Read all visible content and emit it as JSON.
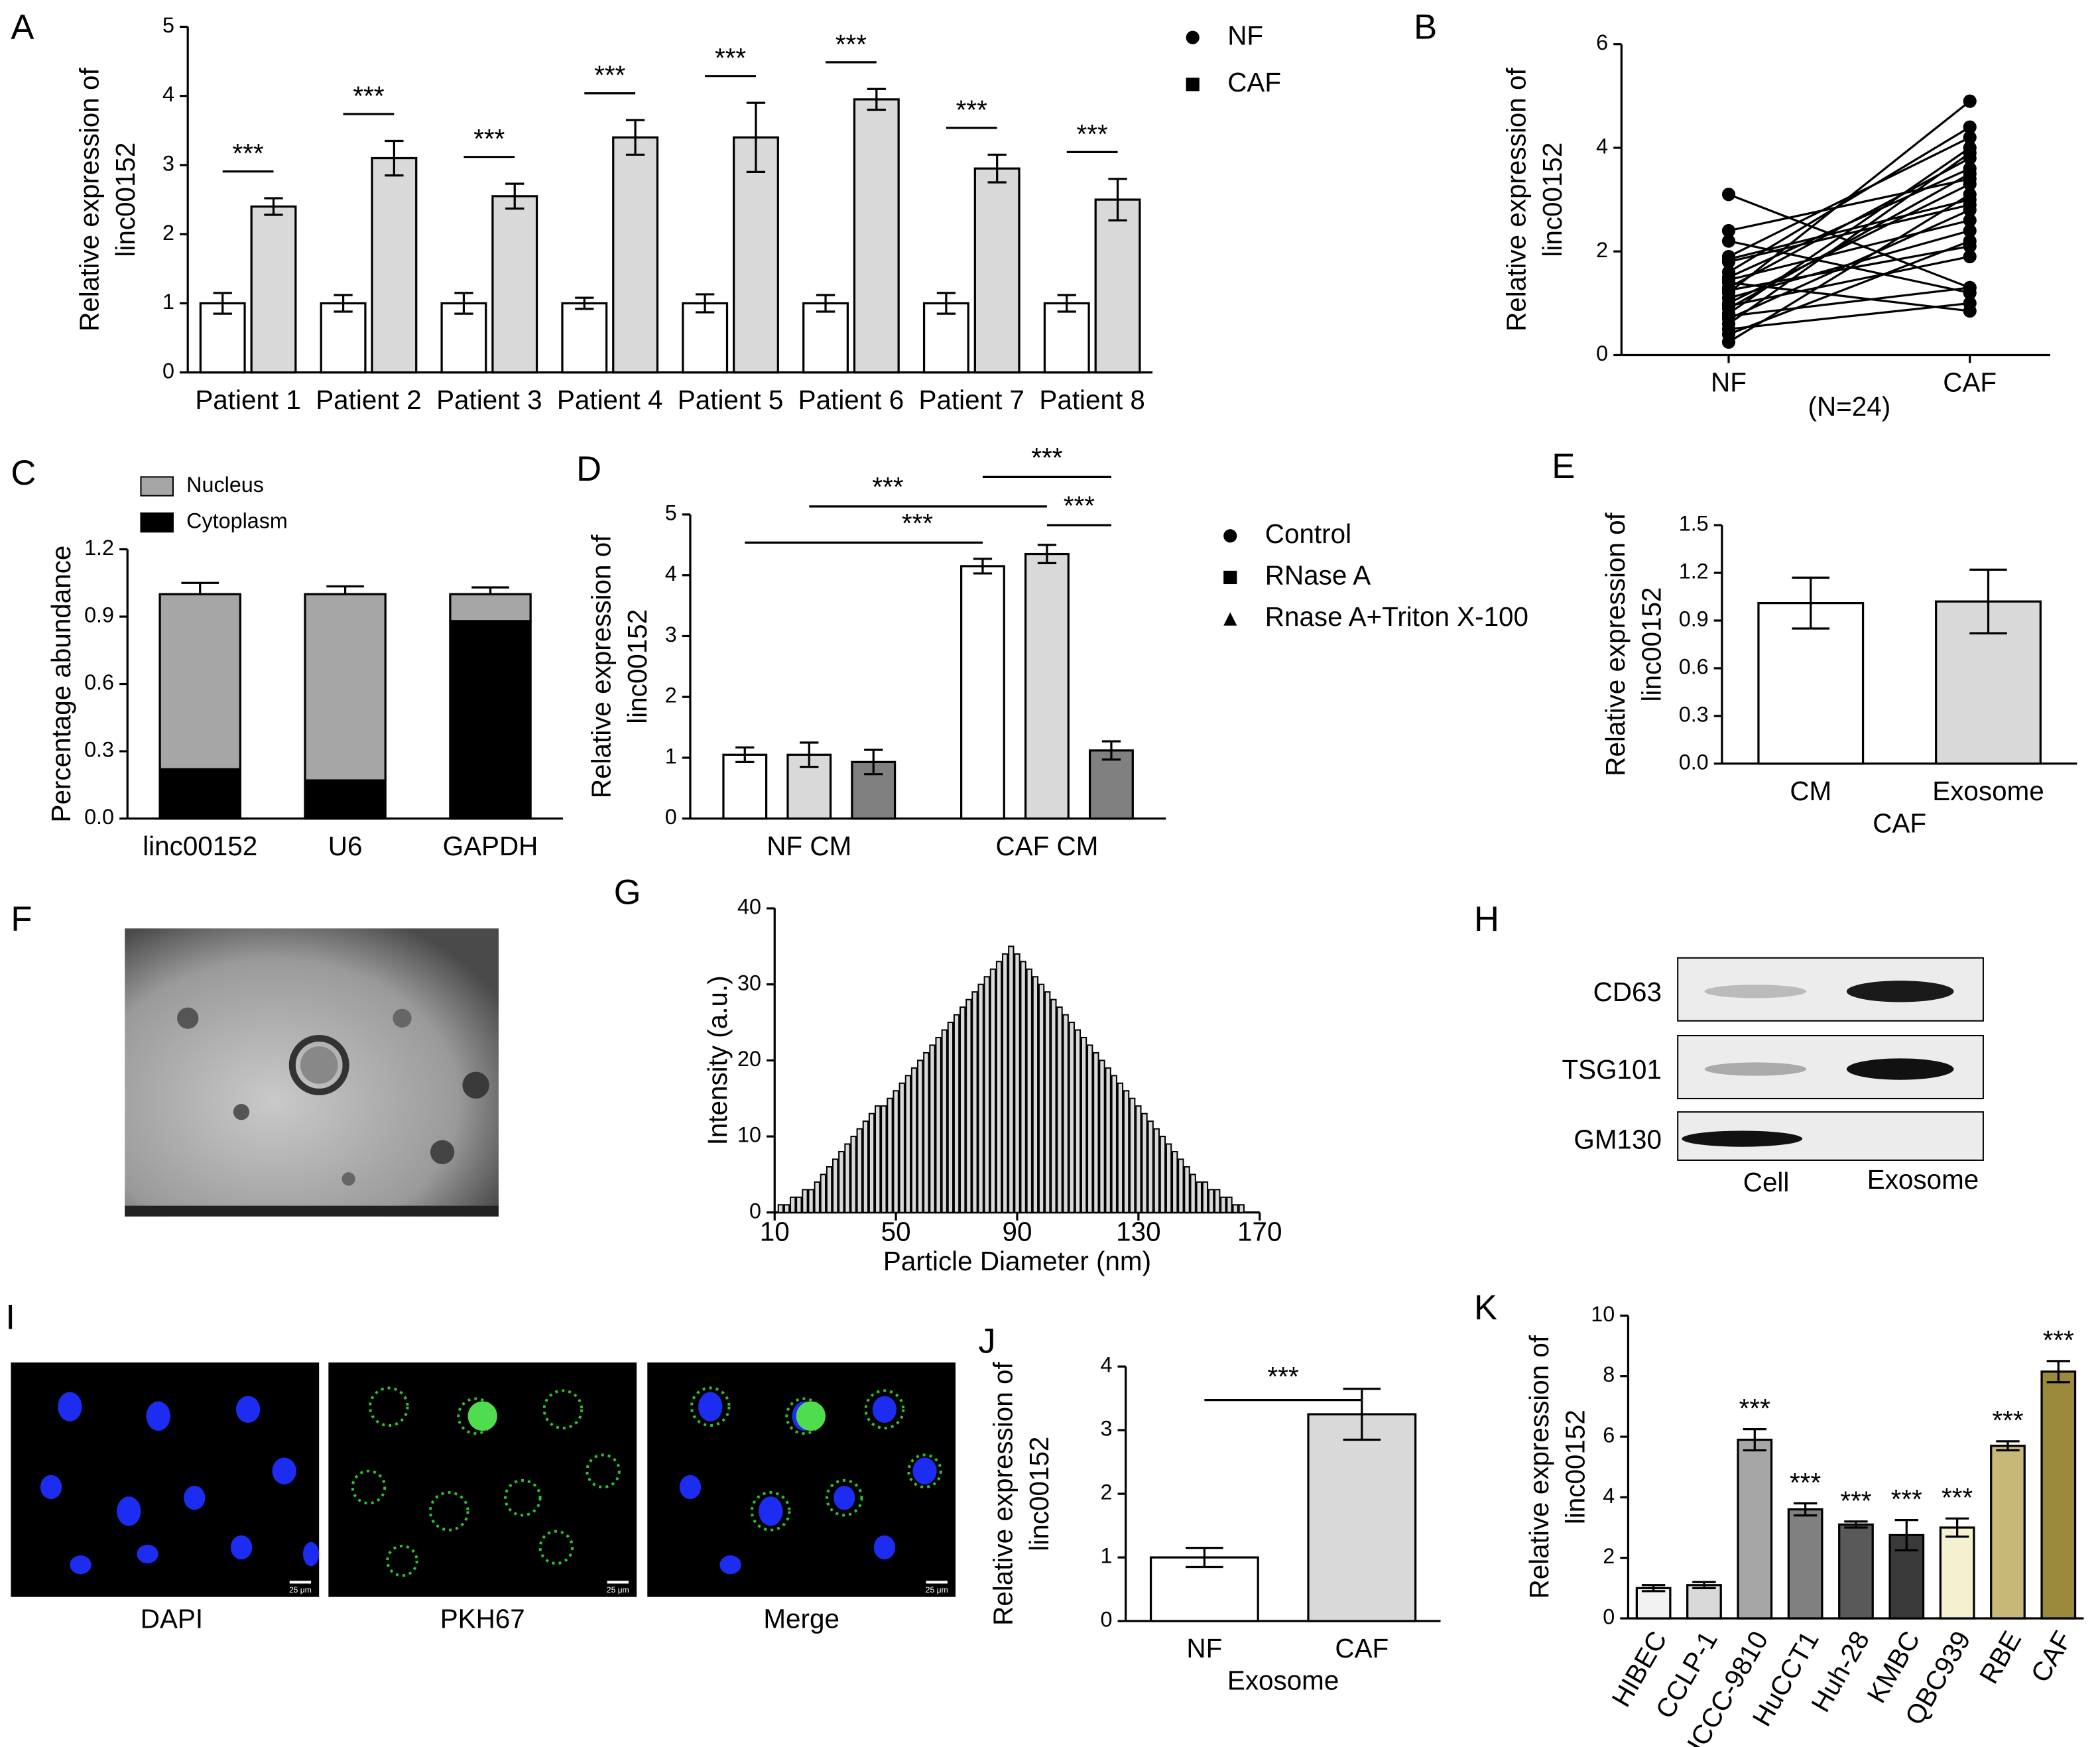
{
  "chart_data": [
    {
      "panel": "A",
      "type": "bar",
      "ylabel": [
        "Relative expression of",
        "linc00152"
      ],
      "categories": [
        "Patient 1",
        "Patient 2",
        "Patient 3",
        "Patient 4",
        "Patient 5",
        "Patient 6",
        "Patient 7",
        "Patient 8"
      ],
      "series": [
        {
          "name": "NF",
          "color": "#ffffff",
          "marker": "circle",
          "values": [
            1,
            1,
            1,
            1,
            1,
            1,
            1,
            1
          ],
          "errors": [
            0.15,
            0.12,
            0.15,
            0.08,
            0.13,
            0.12,
            0.15,
            0.12
          ]
        },
        {
          "name": "CAF",
          "color": "#d9d9d9",
          "marker": "square",
          "values": [
            2.4,
            3.1,
            2.55,
            3.4,
            3.4,
            3.95,
            2.95,
            2.5
          ],
          "errors": [
            0.12,
            0.25,
            0.18,
            0.25,
            0.5,
            0.15,
            0.2,
            0.3
          ]
        }
      ],
      "annotations": [
        "***",
        "***",
        "***",
        "***",
        "***",
        "***",
        "***",
        "***"
      ],
      "ylim": [
        0,
        5
      ],
      "yticks": [
        0,
        1,
        2,
        3,
        4,
        5
      ],
      "legend": "right"
    },
    {
      "panel": "B",
      "type": "paired",
      "ylabel": [
        "Relative expression of",
        "linc00152"
      ],
      "categories": [
        "NF",
        "CAF"
      ],
      "note": "(N=24)",
      "pairs": [
        [
          3.1,
          1.3
        ],
        [
          2.4,
          3.4
        ],
        [
          2.2,
          1.2
        ],
        [
          1.9,
          4.2
        ],
        [
          1.85,
          3.0
        ],
        [
          1.8,
          2.9
        ],
        [
          1.6,
          4.4
        ],
        [
          1.5,
          3.6
        ],
        [
          1.45,
          2.6
        ],
        [
          1.4,
          0.85
        ],
        [
          1.3,
          3.8
        ],
        [
          1.25,
          2.1
        ],
        [
          1.2,
          4.9
        ],
        [
          1.1,
          2.4
        ],
        [
          1.0,
          3.3
        ],
        [
          0.95,
          1.9
        ],
        [
          0.9,
          3.5
        ],
        [
          0.8,
          4.0
        ],
        [
          0.75,
          1.3
        ],
        [
          0.7,
          2.8
        ],
        [
          0.6,
          3.9
        ],
        [
          0.5,
          1.0
        ],
        [
          0.4,
          2.2
        ],
        [
          0.25,
          3.1
        ]
      ],
      "color": "#000000",
      "ylim": [
        0,
        6
      ],
      "yticks": [
        0,
        2,
        4,
        6
      ]
    },
    {
      "panel": "C",
      "type": "stacked_bar",
      "ylabel": [
        "Percentage abundance"
      ],
      "categories": [
        "linc00152",
        "U6",
        "GAPDH"
      ],
      "series": [
        {
          "name": "Nucleus",
          "color": "#a6a6a6",
          "values": [
            0.78,
            0.83,
            0.12
          ],
          "errors": [
            0.05,
            0.035,
            0.03
          ]
        },
        {
          "name": "Cytoplasm",
          "color": "#000000",
          "values": [
            0.22,
            0.17,
            0.88
          ],
          "errors": [
            0.05,
            0.035,
            0.03
          ]
        }
      ],
      "ylim": [
        0,
        1.2
      ],
      "yticks": [
        {
          "value": 0,
          "label": "0.0"
        },
        0.3,
        0.6,
        0.9,
        1.2
      ],
      "legend": "top"
    },
    {
      "panel": "D",
      "type": "bar",
      "ylabel": [
        "Relative expression of",
        "linc00152"
      ],
      "categories": [
        "NF CM",
        "CAF CM"
      ],
      "series": [
        {
          "name": "Control",
          "color": "#ffffff",
          "marker": "circle",
          "values": [
            1.05,
            4.15
          ],
          "errors": [
            0.12,
            0.12
          ]
        },
        {
          "name": "RNase A",
          "color": "#d9d9d9",
          "marker": "square",
          "values": [
            1.05,
            4.35
          ],
          "errors": [
            0.2,
            0.15
          ]
        },
        {
          "name": "Rnase A+Triton X-100",
          "color": "#808080",
          "marker": "triangle",
          "values": [
            0.93,
            1.12
          ],
          "errors": [
            0.2,
            0.15
          ]
        }
      ],
      "annotations": [
        "***",
        "***",
        "***",
        "***"
      ],
      "ylim": [
        0,
        5
      ],
      "yticks": [
        0,
        1,
        2,
        3,
        4,
        5
      ],
      "legend": "right"
    },
    {
      "panel": "E",
      "type": "bar",
      "ylabel": [
        "Relative expression of",
        "linc00152"
      ],
      "categories": [
        "CM",
        "Exosome"
      ],
      "xlabel": "CAF",
      "values": [
        1.01,
        1.02
      ],
      "errors": [
        0.16,
        0.2
      ],
      "colors": [
        "#ffffff",
        "#d9d9d9"
      ],
      "ylim": [
        0,
        1.5
      ],
      "yticks": [
        {
          "value": 0,
          "label": "0.0"
        },
        0.3,
        0.6,
        0.9,
        1.2,
        1.5
      ]
    },
    {
      "panel": "G",
      "type": "bar",
      "ylabel": [
        "Intensity (a.u.)"
      ],
      "xlabel": "Particle Diameter (nm)",
      "x": [
        12,
        14,
        16,
        18,
        20,
        22,
        24,
        26,
        28,
        30,
        32,
        34,
        36,
        38,
        40,
        42,
        44,
        46,
        48,
        50,
        52,
        54,
        56,
        58,
        60,
        62,
        64,
        66,
        68,
        70,
        72,
        74,
        76,
        78,
        80,
        82,
        84,
        86,
        88,
        90,
        92,
        94,
        96,
        98,
        100,
        102,
        104,
        106,
        108,
        110,
        112,
        114,
        116,
        118,
        120,
        122,
        124,
        126,
        128,
        130,
        132,
        134,
        136,
        138,
        140,
        142,
        144,
        146,
        148,
        150,
        152,
        154,
        156,
        158,
        160,
        162,
        164
      ],
      "values": [
        1,
        1,
        2,
        2,
        3,
        3,
        4,
        5,
        6,
        7,
        8,
        9,
        10,
        11,
        12,
        13,
        14,
        14,
        15,
        16,
        17,
        18,
        19,
        20,
        21,
        22,
        23,
        24,
        25,
        26,
        27,
        28,
        29,
        30,
        31,
        32,
        33,
        34,
        35,
        34,
        33,
        32,
        31,
        30,
        29,
        28,
        27,
        26,
        25,
        24,
        23,
        22,
        21,
        20,
        19,
        18,
        17,
        16,
        15,
        14,
        13,
        12,
        11,
        10,
        9,
        8,
        7,
        6,
        5,
        4,
        4,
        3,
        3,
        2,
        2,
        1,
        1
      ],
      "color": "#d9d9d9",
      "xlim": [
        10,
        170
      ],
      "xticks": [
        10,
        50,
        90,
        130,
        170
      ],
      "ylim": [
        0,
        40
      ],
      "yticks": [
        0,
        10,
        20,
        30,
        40
      ]
    },
    {
      "panel": "J",
      "type": "bar",
      "ylabel": [
        "Relative expression of",
        "linc00152"
      ],
      "categories": [
        "NF",
        "CAF"
      ],
      "xlabel": "Exosome",
      "values": [
        1.0,
        3.25
      ],
      "errors": [
        0.15,
        0.4
      ],
      "colors": [
        "#ffffff",
        "#d9d9d9"
      ],
      "annotations": [
        "***"
      ],
      "ylim": [
        0,
        4
      ],
      "yticks": [
        0,
        1,
        2,
        3,
        4
      ]
    },
    {
      "panel": "K",
      "type": "bar",
      "ylabel": [
        "Relative expression of",
        "linc00152"
      ],
      "categories": [
        "HIBEC",
        "CCLP-1",
        "HCCC-9810",
        "HuCCT1",
        "Huh-28",
        "KMBC",
        "QBC939",
        "RBE",
        "CAF"
      ],
      "values": [
        1.0,
        1.1,
        5.9,
        3.6,
        3.1,
        2.75,
        3.0,
        5.7,
        8.15
      ],
      "errors": [
        0.1,
        0.1,
        0.35,
        0.2,
        0.1,
        0.5,
        0.3,
        0.15,
        0.35
      ],
      "colors": [
        "#f2f2f2",
        "#d9d9d9",
        "#a6a6a6",
        "#808080",
        "#595959",
        "#3a3a3a",
        "#f5f0d0",
        "#c8b878",
        "#9c8a3c"
      ],
      "annotations": [
        null,
        null,
        "***",
        "***",
        "***",
        "***",
        "***",
        "***",
        "***"
      ],
      "ylim": [
        0,
        10
      ],
      "yticks": [
        0,
        2,
        4,
        6,
        8,
        10
      ]
    }
  ],
  "images": {
    "tem": {
      "panel": "F"
    },
    "blot": {
      "panel": "H",
      "rows": [
        "CD63",
        "TSG101",
        "GM130"
      ],
      "columns": [
        "Cell",
        "Exosome"
      ]
    },
    "fluorescence": {
      "panel": "I",
      "columns": [
        "DAPI",
        "PKH67",
        "Merge"
      ],
      "scale_bar": "25 μm"
    }
  }
}
